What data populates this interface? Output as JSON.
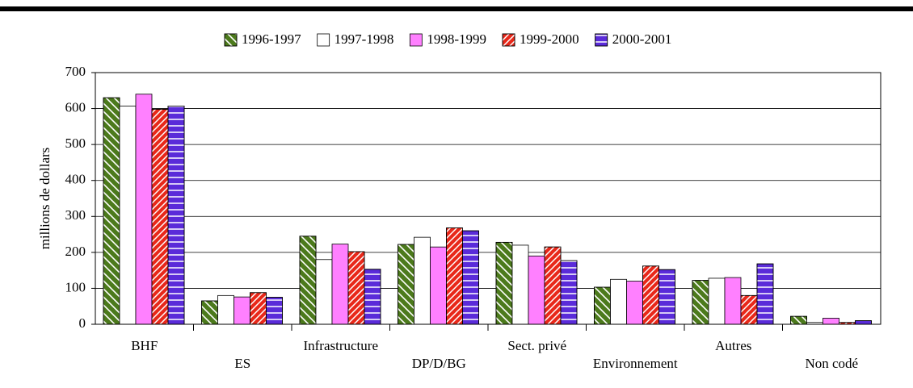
{
  "chart_data": {
    "type": "bar",
    "y_label": "millions de dollars",
    "categories": [
      "BHF",
      "ES",
      "Infrastructure",
      "DP/D/BG",
      "Sect. privé",
      "Environnement",
      "Autres",
      "Non codé"
    ],
    "series": [
      {
        "name": "1996-1997",
        "color": "#4c7a1c",
        "pattern": "diagonal-left",
        "values": [
          630,
          65,
          245,
          222,
          228,
          103,
          122,
          22
        ]
      },
      {
        "name": "1997-1998",
        "color": "#ffffff",
        "pattern": "none",
        "values": [
          607,
          80,
          180,
          242,
          220,
          125,
          128,
          5
        ]
      },
      {
        "name": "1998-1999",
        "color": "#ff80ff",
        "pattern": "none",
        "values": [
          640,
          76,
          223,
          215,
          190,
          120,
          130,
          17
        ]
      },
      {
        "name": "1999-2000",
        "color": "#e8281a",
        "pattern": "diagonal-right",
        "values": [
          598,
          88,
          202,
          268,
          215,
          162,
          80,
          5
        ]
      },
      {
        "name": "2000-2001",
        "color": "#5a2bd9",
        "pattern": "horizontal",
        "values": [
          607,
          75,
          153,
          260,
          177,
          152,
          168,
          10
        ]
      }
    ],
    "ylim": [
      0,
      700
    ],
    "yticks": [
      0,
      100,
      200,
      300,
      400,
      500,
      600,
      700
    ],
    "grid": true,
    "legend": "top"
  }
}
